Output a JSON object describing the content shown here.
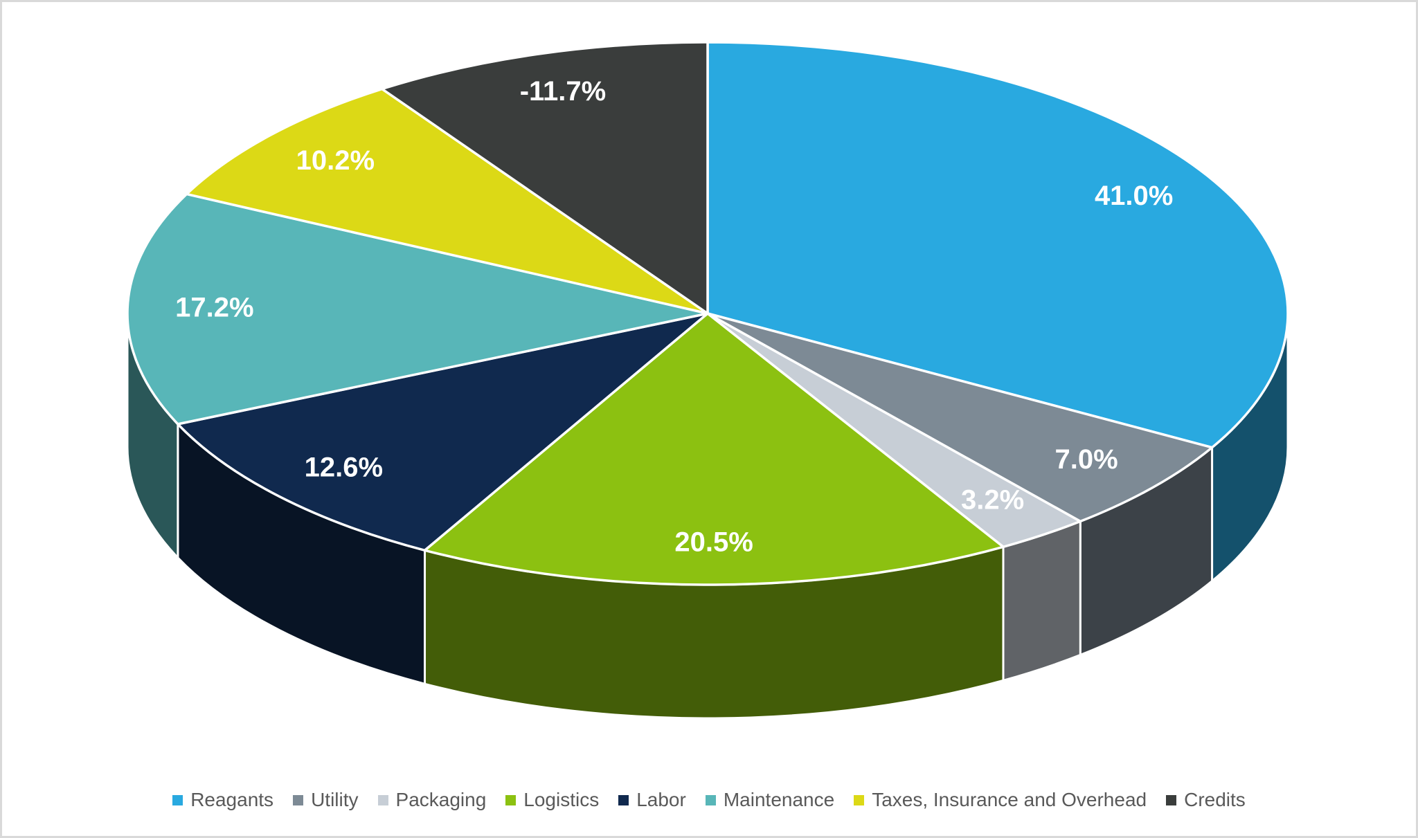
{
  "chart_data": {
    "type": "pie",
    "style": "3d",
    "title": "",
    "start_angle_deg": 0,
    "direction": "clockwise",
    "slice_size_basis": "absolute-values",
    "categories": [
      "Reagants",
      "Utility",
      "Packaging",
      "Logistics",
      "Labor",
      "Maintenance",
      "Taxes, Insurance and Overhead",
      "Credits"
    ],
    "values": [
      41.0,
      7.0,
      3.2,
      20.5,
      12.6,
      17.2,
      10.2,
      -11.7
    ],
    "data_labels": [
      "41.0%",
      "7.0%",
      "3.2%",
      "20.5%",
      "12.6%",
      "17.2%",
      "10.2%",
      "-11.7%"
    ],
    "colors": [
      "#29A9E0",
      "#7D8A95",
      "#C7CED6",
      "#8CC111",
      "#10294E",
      "#58B6B8",
      "#DCD916",
      "#3A3D3C"
    ],
    "data_label_color": "#FFFFFF",
    "separator_color": "#FFFFFF",
    "legend_position": "bottom",
    "legend_text_color": "#595959",
    "frame_border_color": "#D9D9D9",
    "background_color": "#FFFFFF"
  }
}
